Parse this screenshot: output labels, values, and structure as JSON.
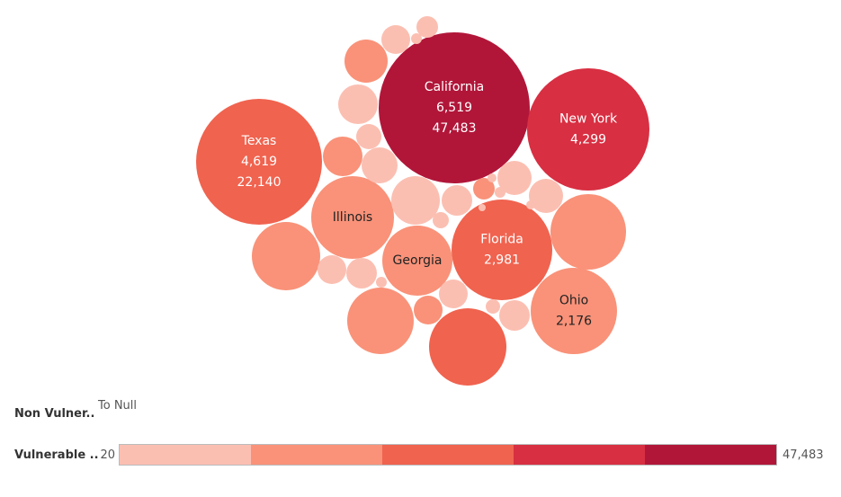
{
  "chart_data": {
    "type": "bubble",
    "title": "",
    "color_field": "Vulnerable ..",
    "palette": [
      "#fbbfb2",
      "#f99279",
      "#f0634f",
      "#d82f42",
      "#b11639"
    ],
    "bubbles": [
      {
        "id": "california",
        "label": "California",
        "values": [
          "6,519",
          "47,483"
        ],
        "color_value": 47483,
        "color": "#b11639",
        "text_color": "#ffffff"
      },
      {
        "id": "texas",
        "label": "Texas",
        "values": [
          "4,619",
          "22,140"
        ],
        "color_value": 22140,
        "color": "#f0634f",
        "text_color": "#ffffff"
      },
      {
        "id": "new-york",
        "label": "New York",
        "values": [
          "4,299"
        ],
        "color_value": 38000,
        "color": "#d82f42",
        "text_color": "#ffffff"
      },
      {
        "id": "florida",
        "label": "Florida",
        "values": [
          "2,981"
        ],
        "color_value": 22000,
        "color": "#f0634f",
        "text_color": "#ffffff"
      },
      {
        "id": "illinois",
        "label": "Illinois",
        "values": [],
        "color_value": 12000,
        "color": "#f99279",
        "text_color": "#222222"
      },
      {
        "id": "georgia",
        "label": "Georgia",
        "values": [],
        "color_value": 12000,
        "color": "#f99279",
        "text_color": "#222222"
      },
      {
        "id": "ohio",
        "label": "Ohio",
        "values": [
          "2,176"
        ],
        "color_value": 12000,
        "color": "#f99279",
        "text_color": "#222222"
      },
      {
        "id": "b8",
        "label": "",
        "values": [],
        "color": "#f0634f"
      },
      {
        "id": "b9",
        "label": "",
        "values": [],
        "color": "#f99279"
      },
      {
        "id": "b10",
        "label": "",
        "values": [],
        "color": "#f99279"
      },
      {
        "id": "b11",
        "label": "",
        "values": [],
        "color": "#f99279"
      },
      {
        "id": "b12",
        "label": "",
        "values": [],
        "color": "#f99279"
      },
      {
        "id": "b13",
        "label": "",
        "values": [],
        "color": "#fbbfb2"
      },
      {
        "id": "b14",
        "label": "",
        "values": [],
        "color": "#f99279"
      },
      {
        "id": "b15",
        "label": "",
        "values": [],
        "color": "#fbbfb2"
      },
      {
        "id": "b16",
        "label": "",
        "values": [],
        "color": "#fbbfb2"
      },
      {
        "id": "b17",
        "label": "",
        "values": [],
        "color": "#fbbfb2"
      },
      {
        "id": "b18",
        "label": "",
        "values": [],
        "color": "#fbbfb2"
      },
      {
        "id": "b19",
        "label": "",
        "values": [],
        "color": "#fbbfb2"
      },
      {
        "id": "b20",
        "label": "",
        "values": [],
        "color": "#fbbfb2"
      },
      {
        "id": "b21",
        "label": "",
        "values": [],
        "color": "#fbbfb2"
      },
      {
        "id": "b22",
        "label": "",
        "values": [],
        "color": "#f99279"
      },
      {
        "id": "b23",
        "label": "",
        "values": [],
        "color": "#fbbfb2"
      },
      {
        "id": "b24",
        "label": "",
        "values": [],
        "color": "#fbbfb2"
      },
      {
        "id": "b25",
        "label": "",
        "values": [],
        "color": "#fbbfb2"
      },
      {
        "id": "b26",
        "label": "",
        "values": [],
        "color": "#fbbfb2"
      },
      {
        "id": "b27",
        "label": "",
        "values": [],
        "color": "#fbbfb2"
      },
      {
        "id": "b28",
        "label": "",
        "values": [],
        "color": "#f99279"
      },
      {
        "id": "b29",
        "label": "",
        "values": [],
        "color": "#fbbfb2"
      },
      {
        "id": "b30",
        "label": "",
        "values": [],
        "color": "#fbbfb2"
      },
      {
        "id": "b31",
        "label": "",
        "values": [],
        "color": "#fbbfb2"
      },
      {
        "id": "b32",
        "label": "",
        "values": [],
        "color": "#fbbfb2"
      },
      {
        "id": "b33",
        "label": "",
        "values": [],
        "color": "#fbbfb2"
      },
      {
        "id": "b34",
        "label": "",
        "values": [],
        "color": "#fbbfb2"
      },
      {
        "id": "b35",
        "label": "",
        "values": [],
        "color": "#fbbfb2"
      },
      {
        "id": "b36",
        "label": "",
        "values": [],
        "color": "#fbbfb2"
      }
    ],
    "legend": {
      "non_vulnerable_label": "Non Vulner..",
      "non_vulnerable_value": "To Null",
      "vulnerable_label": "Vulnerable ..",
      "min_label": "20",
      "max_label": "47,483",
      "min": 20,
      "max": 47483
    }
  }
}
